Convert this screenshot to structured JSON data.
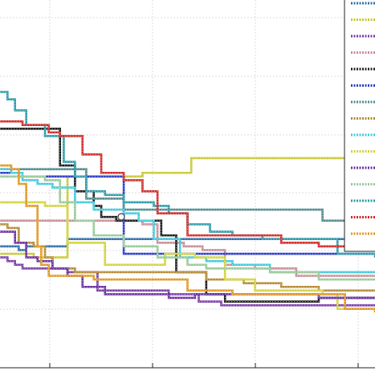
{
  "chart_data": {
    "type": "line",
    "title": "",
    "xlabel": "",
    "ylabel": "",
    "grid": true,
    "legend_placement": "right",
    "legend_entries_visible": 15,
    "series": [
      {
        "color": "#2f6fa8",
        "steps": [
          [
            0,
            0.67
          ],
          [
            0.05,
            0.68
          ],
          [
            0.07,
            0.67
          ],
          [
            0.11,
            0.67
          ],
          [
            0.14,
            0.67
          ],
          [
            0.18,
            0.65
          ],
          [
            0.23,
            0.65
          ],
          [
            0.36,
            0.65
          ],
          [
            1.0,
            0.65
          ]
        ]
      },
      {
        "color": "#c8c832",
        "steps": [
          [
            0,
            0.69
          ],
          [
            0.02,
            0.69
          ],
          [
            0.04,
            0.69
          ],
          [
            0.07,
            0.69
          ],
          [
            0.09,
            0.7
          ],
          [
            0.12,
            0.7
          ],
          [
            0.18,
            0.48
          ],
          [
            0.38,
            0.47
          ],
          [
            0.51,
            0.43
          ],
          [
            1.0,
            0.42
          ]
        ]
      },
      {
        "color": "#7a3aa8",
        "steps": [
          [
            0,
            0.7
          ],
          [
            0.02,
            0.71
          ],
          [
            0.04,
            0.72
          ],
          [
            0.06,
            0.73
          ],
          [
            0.09,
            0.73
          ],
          [
            0.12,
            0.73
          ],
          [
            0.18,
            0.74
          ],
          [
            0.26,
            0.79
          ],
          [
            0.31,
            0.79
          ],
          [
            0.39,
            0.79
          ],
          [
            0.45,
            0.8
          ],
          [
            0.53,
            0.82
          ],
          [
            0.59,
            0.83
          ],
          [
            1.0,
            0.83
          ]
        ]
      },
      {
        "color": "#c88c96",
        "steps": [
          [
            0,
            0.6
          ],
          [
            0.05,
            0.6
          ],
          [
            0.08,
            0.6
          ],
          [
            0.12,
            0.6
          ],
          [
            0.16,
            0.6
          ],
          [
            0.2,
            0.6
          ],
          [
            0.37,
            0.6
          ],
          [
            0.38,
            0.61
          ],
          [
            0.42,
            0.66
          ],
          [
            0.49,
            0.67
          ],
          [
            0.54,
            0.68
          ],
          [
            0.6,
            0.72
          ],
          [
            0.68,
            0.73
          ],
          [
            0.79,
            0.75
          ],
          [
            1.0,
            0.75
          ]
        ]
      },
      {
        "color": "#1a1a1a",
        "steps": [
          [
            0,
            0.35
          ],
          [
            0.02,
            0.35
          ],
          [
            0.08,
            0.35
          ],
          [
            0.15,
            0.35
          ],
          [
            0.16,
            0.45
          ],
          [
            0.2,
            0.52
          ],
          [
            0.25,
            0.56
          ],
          [
            0.27,
            0.59
          ],
          [
            0.31,
            0.6
          ],
          [
            0.38,
            0.6
          ],
          [
            0.43,
            0.64
          ],
          [
            0.47,
            0.74
          ],
          [
            0.55,
            0.8
          ],
          [
            0.6,
            0.82
          ],
          [
            0.67,
            0.82
          ],
          [
            0.75,
            0.82
          ],
          [
            0.85,
            0.81
          ],
          [
            1.0,
            0.81
          ]
        ]
      },
      {
        "color": "#2a3cc8",
        "steps": [
          [
            0,
            0.47
          ],
          [
            0.05,
            0.48
          ],
          [
            0.1,
            0.48
          ],
          [
            0.15,
            0.48
          ],
          [
            0.23,
            0.48
          ],
          [
            0.32,
            0.48
          ],
          [
            0.33,
            0.69
          ],
          [
            0.5,
            0.69
          ],
          [
            1.0,
            0.69
          ]
        ]
      },
      {
        "color": "#4e8a8c",
        "steps": [
          [
            0,
            0.46
          ],
          [
            0.04,
            0.46
          ],
          [
            0.08,
            0.46
          ],
          [
            0.12,
            0.46
          ],
          [
            0.16,
            0.46
          ],
          [
            0.23,
            0.54
          ],
          [
            0.33,
            0.57
          ],
          [
            0.5,
            0.57
          ],
          [
            0.6,
            0.57
          ],
          [
            0.7,
            0.57
          ],
          [
            0.75,
            0.57
          ],
          [
            0.86,
            0.6
          ],
          [
            0.95,
            0.61
          ],
          [
            1.0,
            0.61
          ]
        ]
      },
      {
        "color": "#b48a32",
        "steps": [
          [
            0,
            0.61
          ],
          [
            0.02,
            0.62
          ],
          [
            0.05,
            0.66
          ],
          [
            0.09,
            0.67
          ],
          [
            0.12,
            0.7
          ],
          [
            0.14,
            0.73
          ],
          [
            0.2,
            0.74
          ],
          [
            0.27,
            0.74
          ],
          [
            0.33,
            0.74
          ],
          [
            0.45,
            0.74
          ],
          [
            0.55,
            0.76
          ],
          [
            0.65,
            0.77
          ],
          [
            0.75,
            0.78
          ],
          [
            0.85,
            0.79
          ],
          [
            1.0,
            0.79
          ]
        ]
      },
      {
        "color": "#3ec8dc",
        "steps": [
          [
            0,
            0.46
          ],
          [
            0.03,
            0.47
          ],
          [
            0.06,
            0.49
          ],
          [
            0.1,
            0.5
          ],
          [
            0.14,
            0.51
          ],
          [
            0.17,
            0.51
          ],
          [
            0.2,
            0.55
          ],
          [
            0.25,
            0.57
          ],
          [
            0.33,
            0.58
          ],
          [
            0.37,
            0.6
          ],
          [
            0.41,
            0.65
          ],
          [
            0.48,
            0.7
          ],
          [
            0.55,
            0.71
          ],
          [
            0.62,
            0.72
          ],
          [
            0.72,
            0.74
          ],
          [
            0.85,
            0.74
          ],
          [
            1.0,
            0.74
          ]
        ]
      },
      {
        "color": "#d2d23c",
        "steps": [
          [
            0,
            0.55
          ],
          [
            0.03,
            0.55
          ],
          [
            0.07,
            0.55
          ],
          [
            0.12,
            0.56
          ],
          [
            0.18,
            0.66
          ],
          [
            0.28,
            0.72
          ],
          [
            0.36,
            0.72
          ],
          [
            0.44,
            0.69
          ],
          [
            0.52,
            0.7
          ],
          [
            0.6,
            0.76
          ],
          [
            0.68,
            0.79
          ],
          [
            0.78,
            0.79
          ],
          [
            0.86,
            0.8
          ],
          [
            0.9,
            0.84
          ],
          [
            1.0,
            0.84
          ]
        ]
      },
      {
        "color": "#6a2ea0",
        "steps": [
          [
            0,
            0.63
          ],
          [
            0.02,
            0.63
          ],
          [
            0.04,
            0.66
          ],
          [
            0.07,
            0.7
          ],
          [
            0.1,
            0.71
          ],
          [
            0.14,
            0.73
          ],
          [
            0.18,
            0.75
          ],
          [
            0.22,
            0.78
          ],
          [
            0.28,
            0.8
          ],
          [
            0.33,
            0.8
          ],
          [
            0.45,
            0.81
          ],
          [
            0.52,
            0.8
          ],
          [
            0.58,
            0.8
          ],
          [
            0.65,
            0.8
          ],
          [
            0.72,
            0.8
          ],
          [
            0.85,
            0.81
          ],
          [
            1.0,
            0.81
          ]
        ]
      },
      {
        "color": "#96c896",
        "steps": [
          [
            0,
            0.48
          ],
          [
            0.03,
            0.48
          ],
          [
            0.06,
            0.48
          ],
          [
            0.09,
            0.48
          ],
          [
            0.12,
            0.49
          ],
          [
            0.16,
            0.55
          ],
          [
            0.2,
            0.6
          ],
          [
            0.25,
            0.64
          ],
          [
            0.33,
            0.67
          ],
          [
            0.42,
            0.7
          ],
          [
            0.5,
            0.72
          ],
          [
            0.55,
            0.73
          ],
          [
            0.62,
            0.73
          ],
          [
            0.72,
            0.74
          ],
          [
            0.85,
            0.76
          ],
          [
            1.0,
            0.76
          ]
        ]
      },
      {
        "color": "#2a9aa8",
        "steps": [
          [
            0,
            0.25
          ],
          [
            0.02,
            0.27
          ],
          [
            0.04,
            0.3
          ],
          [
            0.07,
            0.34
          ],
          [
            0.12,
            0.37
          ],
          [
            0.17,
            0.44
          ],
          [
            0.2,
            0.48
          ],
          [
            0.23,
            0.52
          ],
          [
            0.28,
            0.53
          ],
          [
            0.33,
            0.55
          ],
          [
            0.38,
            0.55
          ],
          [
            0.41,
            0.56
          ],
          [
            0.45,
            0.58
          ],
          [
            0.5,
            0.61
          ],
          [
            0.56,
            0.63
          ],
          [
            0.62,
            0.64
          ],
          [
            0.7,
            0.65
          ],
          [
            0.8,
            0.65
          ],
          [
            0.9,
            0.69
          ],
          [
            1.0,
            0.7
          ]
        ]
      },
      {
        "color": "#d22828",
        "steps": [
          [
            0,
            0.33
          ],
          [
            0.03,
            0.33
          ],
          [
            0.06,
            0.34
          ],
          [
            0.1,
            0.34
          ],
          [
            0.13,
            0.36
          ],
          [
            0.16,
            0.37
          ],
          [
            0.22,
            0.42
          ],
          [
            0.27,
            0.47
          ],
          [
            0.33,
            0.49
          ],
          [
            0.38,
            0.52
          ],
          [
            0.42,
            0.58
          ],
          [
            0.5,
            0.64
          ],
          [
            0.6,
            0.64
          ],
          [
            0.75,
            0.66
          ],
          [
            0.85,
            0.67
          ],
          [
            0.95,
            0.68
          ],
          [
            1.0,
            0.68
          ]
        ]
      },
      {
        "color": "#e0961e",
        "steps": [
          [
            0,
            0.45
          ],
          [
            0.01,
            0.45
          ],
          [
            0.03,
            0.46
          ],
          [
            0.05,
            0.5
          ],
          [
            0.07,
            0.56
          ],
          [
            0.1,
            0.67
          ],
          [
            0.11,
            0.72
          ],
          [
            0.13,
            0.75
          ],
          [
            0.18,
            0.75
          ],
          [
            0.25,
            0.76
          ],
          [
            0.3,
            0.76
          ],
          [
            0.38,
            0.76
          ],
          [
            0.5,
            0.79
          ],
          [
            0.62,
            0.8
          ],
          [
            0.78,
            0.8
          ],
          [
            0.88,
            0.8
          ],
          [
            0.92,
            0.84
          ],
          [
            1.0,
            0.85
          ]
        ]
      }
    ]
  }
}
